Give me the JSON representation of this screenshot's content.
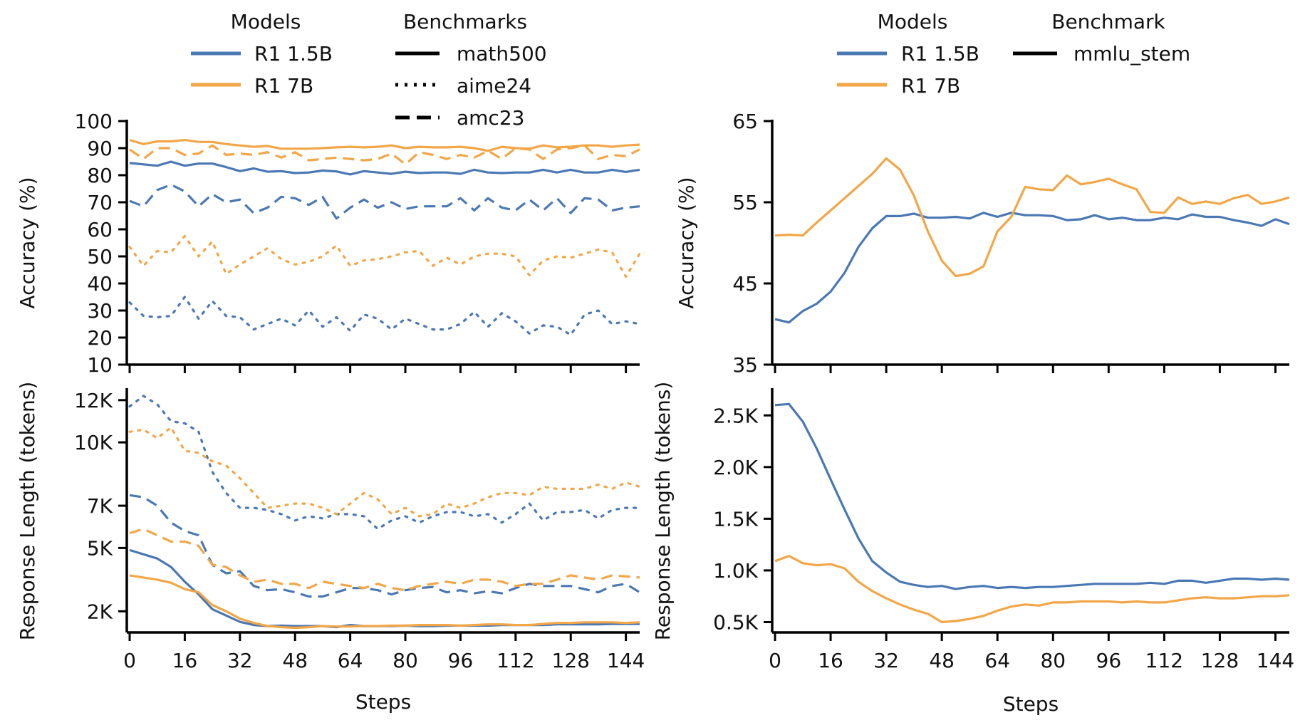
{
  "colors": {
    "r1_1_5b": "#4a78b5",
    "r1_7b": "#f2a646",
    "axis": "#000000"
  },
  "legends": {
    "left": {
      "models_title": "Models",
      "models": [
        "R1 1.5B",
        "R1 7B"
      ],
      "benchmarks_title": "Benchmarks",
      "benchmarks": [
        {
          "name": "math500",
          "style": "solid"
        },
        {
          "name": "aime24",
          "style": "dotted"
        },
        {
          "name": "amc23",
          "style": "dashed"
        }
      ]
    },
    "right": {
      "models_title": "Models",
      "models": [
        "R1 1.5B",
        "R1 7B"
      ],
      "benchmarks_title": "Benchmark",
      "benchmarks": [
        {
          "name": "mmlu_stem",
          "style": "solid"
        }
      ]
    }
  },
  "chart_data": [
    {
      "id": "left-accuracy",
      "type": "line",
      "xlabel": "",
      "ylabel": "Accuracy (%)",
      "xlim": [
        0,
        148
      ],
      "ylim": [
        10,
        100
      ],
      "yticks": [
        10,
        20,
        30,
        40,
        50,
        60,
        70,
        80,
        90,
        100
      ],
      "ytick_labels": [
        "10",
        "20",
        "30",
        "40",
        "50",
        "60",
        "70",
        "80",
        "90",
        "100"
      ],
      "xticks": [
        0,
        16,
        32,
        48,
        64,
        80,
        96,
        112,
        128,
        144
      ],
      "x": [
        0,
        4,
        8,
        12,
        16,
        20,
        24,
        28,
        32,
        36,
        40,
        44,
        48,
        52,
        56,
        60,
        64,
        68,
        72,
        76,
        80,
        84,
        88,
        92,
        96,
        100,
        104,
        108,
        112,
        116,
        120,
        124,
        128,
        132,
        136,
        140,
        144,
        148
      ],
      "series": [
        {
          "model": "R1 1.5B",
          "benchmark": "math500",
          "style": "solid",
          "color": "#4a78b5",
          "values": [
            84.5,
            84,
            83.5,
            85,
            83.5,
            84.3,
            84.3,
            83,
            81.5,
            82.5,
            81.3,
            81.5,
            80.8,
            81,
            81.7,
            81.4,
            80.3,
            81.5,
            81,
            80.5,
            81.3,
            80.8,
            81,
            81,
            80.5,
            82,
            81,
            80.8,
            81,
            81,
            82,
            81,
            82,
            81,
            81,
            82,
            81.2,
            82
          ]
        },
        {
          "model": "R1 1.5B",
          "benchmark": "aime24",
          "style": "dotted",
          "color": "#4a78b5",
          "values": [
            33,
            28,
            27.5,
            28,
            35,
            27,
            33.5,
            28,
            27.5,
            23,
            25,
            27,
            24.5,
            30,
            24,
            27.5,
            22.5,
            28.5,
            27,
            23,
            27,
            25,
            23,
            23,
            25,
            29.5,
            24,
            29,
            26,
            21.5,
            24.5,
            24,
            21,
            28.5,
            30,
            25,
            26,
            25
          ]
        },
        {
          "model": "R1 1.5B",
          "benchmark": "amc23",
          "style": "dashed",
          "color": "#4a78b5",
          "values": [
            70.5,
            68.5,
            74.5,
            76.5,
            74,
            68.5,
            73,
            70,
            71,
            66,
            68,
            72,
            71.5,
            69,
            72,
            64,
            68,
            71,
            68,
            70,
            67.5,
            68.5,
            68.5,
            68.5,
            71.5,
            67,
            71.5,
            68,
            67,
            71,
            67,
            71.5,
            66,
            71.5,
            71,
            67,
            68,
            68.5
          ]
        },
        {
          "model": "R1 7B",
          "benchmark": "math500",
          "style": "solid",
          "color": "#f2a646",
          "values": [
            93,
            91.5,
            92.5,
            92.5,
            93,
            92.3,
            92.3,
            91.5,
            91,
            90.5,
            90.8,
            89.8,
            89.8,
            89.8,
            90,
            90.3,
            90.5,
            90.3,
            90.5,
            91,
            90,
            90.5,
            90.3,
            90.3,
            90.5,
            90,
            89,
            90.5,
            90,
            89.8,
            91,
            90.3,
            90.5,
            91,
            91,
            90.5,
            91,
            91.3
          ]
        },
        {
          "model": "R1 7B",
          "benchmark": "aime24",
          "style": "dotted",
          "color": "#f2a646",
          "values": [
            53.5,
            46.5,
            52,
            51.5,
            57.5,
            50,
            55.5,
            43.5,
            47,
            50,
            53,
            49,
            47,
            48,
            50,
            54,
            46.5,
            48.5,
            49,
            50,
            51.5,
            52,
            46.5,
            49.5,
            47,
            50,
            51,
            51,
            50,
            43,
            48.5,
            50,
            49.5,
            51,
            52.5,
            51.5,
            42.5,
            51
          ]
        },
        {
          "model": "R1 7B",
          "benchmark": "amc23",
          "style": "dashed",
          "color": "#f2a646",
          "values": [
            89.5,
            86,
            90,
            90,
            87.5,
            88,
            91,
            87.5,
            88,
            87.5,
            88.5,
            86.5,
            88.5,
            85.5,
            86,
            86.5,
            86,
            85.5,
            86,
            88,
            84,
            88.5,
            87.5,
            86,
            87.5,
            86.5,
            89,
            86,
            90,
            89.5,
            86,
            89.5,
            90,
            91,
            86,
            87.5,
            87,
            89.5
          ]
        }
      ]
    },
    {
      "id": "left-length",
      "type": "line",
      "xlabel": "Steps",
      "ylabel": "Response Length (tokens)",
      "xlim": [
        0,
        148
      ],
      "ylim": [
        1,
        12.5
      ],
      "yticks": [
        2,
        5,
        7,
        10,
        12
      ],
      "ytick_labels": [
        "2K",
        "5K",
        "7K",
        "10K",
        "12K"
      ],
      "xticks": [
        0,
        16,
        32,
        48,
        64,
        80,
        96,
        112,
        128,
        144
      ],
      "xtick_labels": [
        "0",
        "16",
        "32",
        "48",
        "64",
        "80",
        "96",
        "112",
        "128",
        "144"
      ],
      "x": [
        0,
        4,
        8,
        12,
        16,
        20,
        24,
        28,
        32,
        36,
        40,
        44,
        48,
        52,
        56,
        60,
        64,
        68,
        72,
        76,
        80,
        84,
        88,
        92,
        96,
        100,
        104,
        108,
        112,
        116,
        120,
        124,
        128,
        132,
        136,
        140,
        144,
        148
      ],
      "series": [
        {
          "model": "R1 1.5B",
          "benchmark": "math500",
          "style": "solid",
          "color": "#4a78b5",
          "values": [
            4.9,
            4.7,
            4.5,
            4.1,
            3.4,
            2.8,
            2.1,
            1.8,
            1.5,
            1.35,
            1.3,
            1.32,
            1.3,
            1.3,
            1.3,
            1.25,
            1.35,
            1.3,
            1.3,
            1.3,
            1.32,
            1.3,
            1.3,
            1.32,
            1.32,
            1.32,
            1.32,
            1.35,
            1.35,
            1.35,
            1.35,
            1.38,
            1.38,
            1.38,
            1.38,
            1.4,
            1.4,
            1.4
          ]
        },
        {
          "model": "R1 1.5B",
          "benchmark": "aime24",
          "style": "dotted",
          "color": "#4a78b5",
          "values": [
            11.7,
            12.2,
            11.8,
            11,
            10.9,
            10.5,
            8.6,
            7.6,
            6.9,
            6.9,
            6.8,
            6.6,
            6.3,
            6.5,
            6.4,
            6.6,
            6.6,
            6.5,
            5.9,
            6.3,
            6.5,
            6.2,
            6.5,
            6.7,
            6.7,
            6.5,
            6.6,
            6.2,
            6.6,
            7.1,
            6.3,
            6.7,
            6.7,
            6.8,
            6.4,
            6.8,
            6.9,
            6.9
          ]
        },
        {
          "model": "R1 1.5B",
          "benchmark": "amc23",
          "style": "dashed",
          "color": "#4a78b5",
          "values": [
            7.5,
            7.4,
            7,
            6.2,
            5.8,
            5.6,
            4.2,
            3.8,
            3.9,
            3.2,
            3,
            3.05,
            2.9,
            2.7,
            2.7,
            2.9,
            3.1,
            3.1,
            3,
            2.8,
            3,
            3.1,
            3.15,
            2.9,
            3,
            2.85,
            2.95,
            2.85,
            3.1,
            3.3,
            3.2,
            3.2,
            3.2,
            3.05,
            2.9,
            3.2,
            3.3,
            2.9
          ]
        },
        {
          "model": "R1 7B",
          "benchmark": "math500",
          "style": "solid",
          "color": "#f2a646",
          "values": [
            3.7,
            3.6,
            3.5,
            3.35,
            3.05,
            2.9,
            2.3,
            2,
            1.65,
            1.45,
            1.3,
            1.25,
            1.22,
            1.25,
            1.3,
            1.28,
            1.28,
            1.3,
            1.3,
            1.32,
            1.32,
            1.35,
            1.35,
            1.35,
            1.32,
            1.35,
            1.38,
            1.38,
            1.35,
            1.35,
            1.4,
            1.45,
            1.45,
            1.48,
            1.48,
            1.48,
            1.45,
            1.48
          ]
        },
        {
          "model": "R1 7B",
          "benchmark": "aime24",
          "style": "dotted",
          "color": "#f2a646",
          "values": [
            10.5,
            10.6,
            10.2,
            10.7,
            9.6,
            9.5,
            9.1,
            8.9,
            8.3,
            7.6,
            6.9,
            7,
            7.1,
            7.1,
            6.9,
            6.6,
            7.1,
            7.6,
            7.3,
            6.6,
            6.9,
            6.5,
            6.6,
            7.1,
            6.9,
            7.1,
            7.4,
            7.6,
            7.6,
            7.5,
            7.9,
            7.8,
            7.8,
            7.8,
            8,
            7.8,
            8.1,
            7.9
          ]
        },
        {
          "model": "R1 7B",
          "benchmark": "amc23",
          "style": "dashed",
          "color": "#f2a646",
          "values": [
            5.7,
            5.9,
            5.6,
            5.3,
            5.3,
            5.1,
            4.2,
            4.1,
            3.7,
            3.4,
            3.5,
            3.3,
            3.3,
            3.1,
            3.4,
            3.3,
            3.2,
            3.1,
            3.3,
            3.1,
            3,
            3.2,
            3.3,
            3.4,
            3.3,
            3.5,
            3.5,
            3.4,
            3.2,
            3.3,
            3.3,
            3.5,
            3.7,
            3.6,
            3.5,
            3.7,
            3.65,
            3.6
          ]
        }
      ]
    },
    {
      "id": "right-accuracy",
      "type": "line",
      "xlabel": "",
      "ylabel": "Accuracy (%)",
      "xlim": [
        0,
        148
      ],
      "ylim": [
        35,
        65
      ],
      "yticks": [
        35,
        45,
        55,
        65
      ],
      "ytick_labels": [
        "35",
        "45",
        "55",
        "65"
      ],
      "xticks": [
        0,
        16,
        32,
        48,
        64,
        80,
        96,
        112,
        128,
        144
      ],
      "x": [
        0,
        4,
        8,
        12,
        16,
        20,
        24,
        28,
        32,
        36,
        40,
        44,
        48,
        52,
        56,
        60,
        64,
        68,
        72,
        76,
        80,
        84,
        88,
        92,
        96,
        100,
        104,
        108,
        112,
        116,
        120,
        124,
        128,
        132,
        136,
        140,
        144,
        148
      ],
      "series": [
        {
          "model": "R1 1.5B",
          "benchmark": "mmlu_stem",
          "style": "solid",
          "color": "#4a78b5",
          "values": [
            40.6,
            40.2,
            41.6,
            42.5,
            44,
            46.3,
            49.5,
            51.8,
            53.3,
            53.3,
            53.6,
            53.1,
            53.1,
            53.2,
            53,
            53.7,
            53.2,
            53.7,
            53.4,
            53.4,
            53.3,
            52.8,
            52.9,
            53.4,
            52.9,
            53.1,
            52.8,
            52.8,
            53.1,
            52.9,
            53.5,
            53.2,
            53.2,
            52.8,
            52.5,
            52.1,
            52.9,
            52.3
          ]
        },
        {
          "model": "R1 7B",
          "benchmark": "mmlu_stem",
          "style": "solid",
          "color": "#f2a646",
          "values": [
            50.9,
            51,
            50.9,
            52.5,
            54,
            55.5,
            57,
            58.5,
            60.4,
            59,
            55.8,
            51.4,
            47.8,
            45.9,
            46.2,
            47.1,
            51.4,
            53.2,
            56.9,
            56.6,
            56.5,
            58.3,
            57.2,
            57.5,
            57.9,
            57.2,
            56.6,
            53.8,
            53.7,
            55.6,
            54.8,
            55.1,
            54.8,
            55.5,
            55.9,
            54.8,
            55.1,
            55.6
          ]
        }
      ]
    },
    {
      "id": "right-length",
      "type": "line",
      "xlabel": "Steps",
      "ylabel": "Response Length (tokens)",
      "xlim": [
        0,
        148
      ],
      "ylim": [
        0.4,
        2.75
      ],
      "yticks": [
        0.5,
        1.0,
        1.5,
        2.0,
        2.5
      ],
      "ytick_labels": [
        "0.5K",
        "1.0K",
        "1.5K",
        "2.0K",
        "2.5K"
      ],
      "xticks": [
        0,
        16,
        32,
        48,
        64,
        80,
        96,
        112,
        128,
        144
      ],
      "xtick_labels": [
        "0",
        "16",
        "32",
        "48",
        "64",
        "80",
        "96",
        "112",
        "128",
        "144"
      ],
      "x": [
        0,
        4,
        8,
        12,
        16,
        20,
        24,
        28,
        32,
        36,
        40,
        44,
        48,
        52,
        56,
        60,
        64,
        68,
        72,
        76,
        80,
        84,
        88,
        92,
        96,
        100,
        104,
        108,
        112,
        116,
        120,
        124,
        128,
        132,
        136,
        140,
        144,
        148
      ],
      "series": [
        {
          "model": "R1 1.5B",
          "benchmark": "mmlu_stem",
          "style": "solid",
          "color": "#4a78b5",
          "values": [
            2.6,
            2.61,
            2.44,
            2.18,
            1.88,
            1.59,
            1.31,
            1.09,
            0.98,
            0.89,
            0.86,
            0.84,
            0.85,
            0.82,
            0.84,
            0.85,
            0.83,
            0.84,
            0.83,
            0.84,
            0.84,
            0.85,
            0.86,
            0.87,
            0.87,
            0.87,
            0.87,
            0.88,
            0.87,
            0.9,
            0.9,
            0.88,
            0.9,
            0.92,
            0.92,
            0.91,
            0.92,
            0.91
          ]
        },
        {
          "model": "R1 7B",
          "benchmark": "mmlu_stem",
          "style": "solid",
          "color": "#f2a646",
          "values": [
            1.09,
            1.14,
            1.07,
            1.05,
            1.06,
            1.02,
            0.89,
            0.8,
            0.73,
            0.67,
            0.62,
            0.58,
            0.5,
            0.51,
            0.53,
            0.56,
            0.61,
            0.65,
            0.67,
            0.66,
            0.69,
            0.69,
            0.7,
            0.7,
            0.7,
            0.69,
            0.7,
            0.69,
            0.69,
            0.71,
            0.73,
            0.74,
            0.73,
            0.73,
            0.74,
            0.75,
            0.75,
            0.76
          ]
        }
      ]
    }
  ]
}
